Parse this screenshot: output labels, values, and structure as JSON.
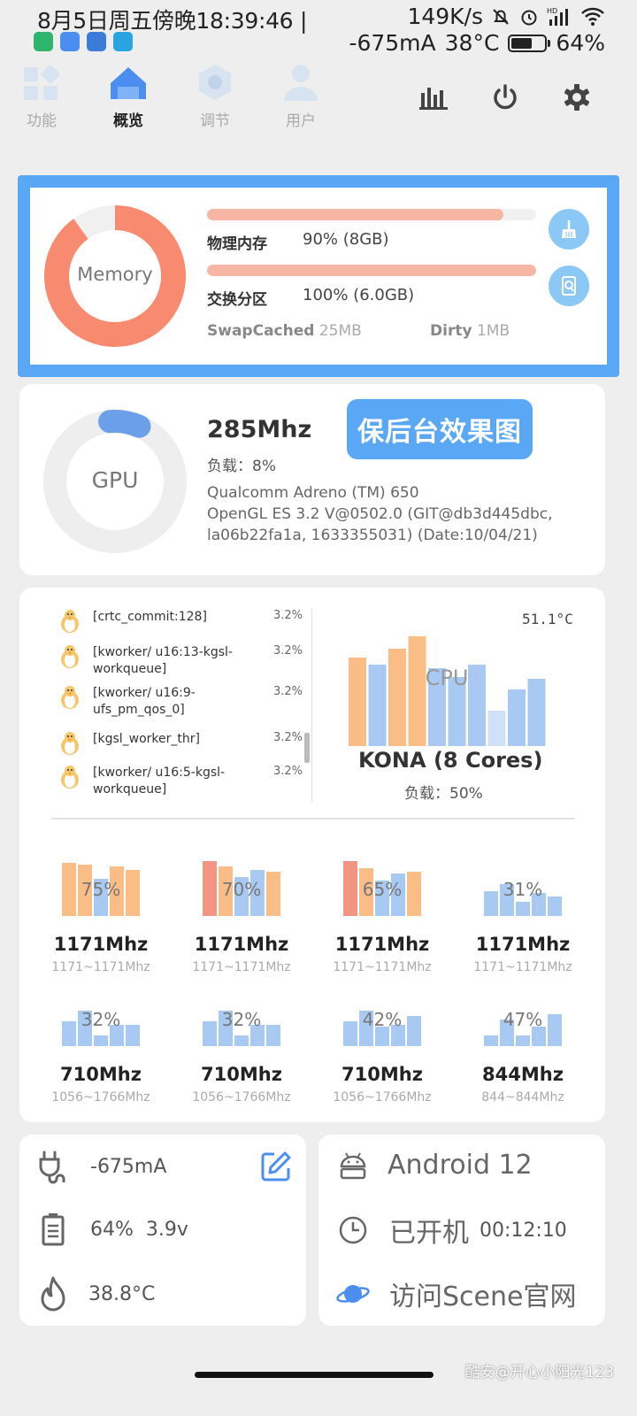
{
  "status_bar": {
    "datetime": "8月5日周五傍晚18:39:46 |",
    "net_speed": "149K/s",
    "current": "-675mA",
    "temperature": "38°C",
    "battery": "64%",
    "battery_level": 0.64,
    "signal_badge": "HD"
  },
  "nav": {
    "tabs": [
      {
        "label": "功能",
        "icon": "grid-icon"
      },
      {
        "label": "概览",
        "icon": "home-icon"
      },
      {
        "label": "调节",
        "icon": "hexagon-icon"
      },
      {
        "label": "用户",
        "icon": "user-icon"
      }
    ],
    "active_tab": "概览",
    "buttons": [
      "chart-icon",
      "power-icon",
      "settings-icon"
    ]
  },
  "memory": {
    "ring_label": "Memory",
    "physical_label": "物理内存",
    "physical_value": "90% (8GB)",
    "physical_level": 0.9,
    "swap_label": "交换分区",
    "swap_value": "100% (6.0GB)",
    "swap_level": 1.0,
    "swapcached_label": "SwapCached",
    "swapcached_value": "25MB",
    "dirty_label": "Dirty",
    "dirty_value": "1MB"
  },
  "gpu": {
    "ring_label": "GPU",
    "load_level": 0.08,
    "mhz": "285Mhz",
    "load": "负载：8%",
    "model": "Qualcomm Adreno (TM) 650",
    "opengl": "OpenGL ES 3.2 V@0502.0 (GIT@db3d445dbc, la06b22fa1a, 1633355031) (Date:10/04/21)",
    "overlay_button": "保后台效果图"
  },
  "processes": [
    {
      "name": "[crtc_commit:128]",
      "pct": "3.2%"
    },
    {
      "name": "[kworker/ u16:13-kgsl-workqueue]",
      "pct": "3.2%"
    },
    {
      "name": "[kworker/ u16:9-ufs_pm_qos_0]",
      "pct": "3.2%"
    },
    {
      "name": "[kgsl_worker_thr]",
      "pct": "3.2%"
    },
    {
      "name": "[kworker/ u16:5-kgsl-workqueue]",
      "pct": "3.2%"
    }
  ],
  "cpu": {
    "temperature": "51.1°C",
    "label": "CPU",
    "name": "KONA (8 Cores)",
    "load": "负载：50%"
  },
  "cores": [
    {
      "pct": "75%",
      "mhz": "1171Mhz",
      "range": "1171~1171Mhz"
    },
    {
      "pct": "70%",
      "mhz": "1171Mhz",
      "range": "1171~1171Mhz"
    },
    {
      "pct": "65%",
      "mhz": "1171Mhz",
      "range": "1171~1171Mhz"
    },
    {
      "pct": "31%",
      "mhz": "1171Mhz",
      "range": "1171~1171Mhz"
    },
    {
      "pct": "32%",
      "mhz": "710Mhz",
      "range": "1056~1766Mhz"
    },
    {
      "pct": "32%",
      "mhz": "710Mhz",
      "range": "1056~1766Mhz"
    },
    {
      "pct": "42%",
      "mhz": "710Mhz",
      "range": "1056~1766Mhz"
    },
    {
      "pct": "47%",
      "mhz": "844Mhz",
      "range": "844~844Mhz"
    }
  ],
  "power": {
    "current": "-675mA",
    "battery": "64%",
    "voltage": "3.9v",
    "temperature": "38.8°C"
  },
  "system": {
    "android": "Android 12",
    "uptime_label": "已开机",
    "uptime": "00:12:10",
    "website": "访问Scene官网"
  },
  "watermark": "酷安@开心小阳光123",
  "colors": {
    "accent": "#5aa8f5",
    "memory": "#f88a70",
    "bar_orange": "#f9bd85",
    "bar_blue": "#a8c9f2",
    "bar_red": "#f29582"
  }
}
